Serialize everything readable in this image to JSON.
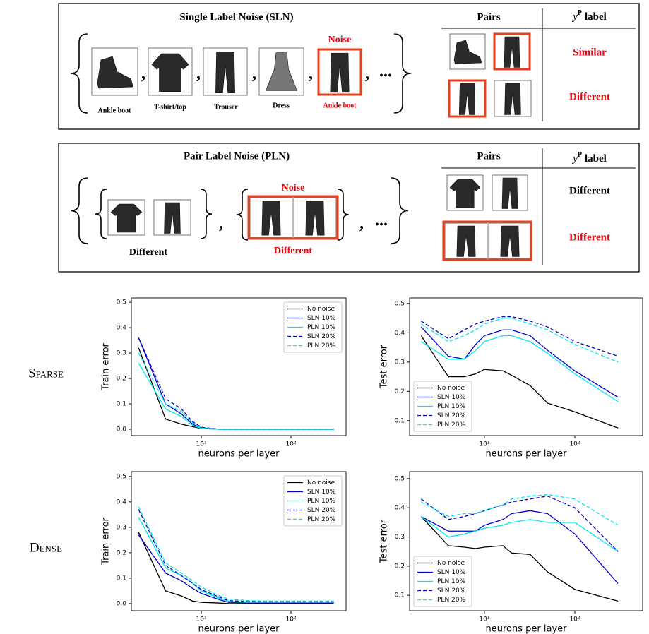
{
  "sln": {
    "title": "Single Label Noise (SLN)",
    "noise": "Noise",
    "items": [
      "Ankle boot",
      "T-shirt/top",
      "Trouser",
      "Dress",
      "Ankle boot"
    ],
    "separator": ",",
    "ellipsis": "...",
    "table": {
      "pairs": "Pairs",
      "header": {
        "symbol": "y",
        "superscript": "P",
        "text": "label"
      },
      "rows": [
        "Similar",
        "Different"
      ]
    }
  },
  "pln": {
    "title": "Pair Label Noise (PLN)",
    "noise": "Noise",
    "items": [
      "Different",
      "Different"
    ],
    "separator": ",",
    "ellipsis": "...",
    "table": {
      "pairs": "Pairs",
      "header": {
        "symbol": "y",
        "superscript": "P",
        "text": "label"
      },
      "rows": [
        "Different",
        "Different"
      ]
    }
  },
  "row_labels": [
    "Sparse",
    "Dense"
  ],
  "chart_data": [
    {
      "type": "line",
      "xlabel": "neurons per layer",
      "ylabel": "Train error",
      "xscale": "log",
      "legend": "upper right",
      "x": [
        2,
        4,
        6,
        8,
        10,
        16,
        20,
        32,
        50,
        100,
        300
      ],
      "xlim": [
        1.66,
        411
      ],
      "xticks": [
        {
          "value": 10,
          "label": "10¹"
        },
        {
          "value": 100,
          "label": "10²"
        }
      ],
      "ylim": [
        -0.025,
        0.517
      ],
      "yticks": [
        {
          "value": 0,
          "label": "0.0"
        },
        0.1,
        0.2,
        0.3,
        0.4,
        0.5
      ],
      "series": [
        {
          "name": "No noise",
          "color": "#000000",
          "style": "solid",
          "values": [
            0.32,
            0.04,
            0.02,
            0.01,
            0.003,
            0,
            0,
            0,
            0,
            0,
            0
          ]
        },
        {
          "name": "SLN 10%",
          "color": "#0000cc",
          "style": "solid",
          "values": [
            0.36,
            0.1,
            0.06,
            0.02,
            0.005,
            0,
            0,
            0,
            0,
            0,
            0
          ]
        },
        {
          "name": "PLN 10%",
          "color": "#00e5ee",
          "style": "solid",
          "values": [
            0.26,
            0.08,
            0.05,
            0.015,
            0.003,
            0,
            0,
            0,
            0,
            0,
            0
          ]
        },
        {
          "name": "SLN 20%",
          "color": "#0000cc",
          "style": "dashed",
          "values": [
            0.36,
            0.12,
            0.08,
            0.03,
            0.008,
            0,
            0,
            0,
            0,
            0,
            0
          ]
        },
        {
          "name": "PLN 20%",
          "color": "#00e5ee",
          "style": "dashed",
          "values": [
            0.3,
            0.1,
            0.07,
            0.025,
            0.005,
            0,
            0,
            0,
            0,
            0,
            0
          ]
        }
      ]
    },
    {
      "type": "line",
      "xlabel": "neurons per layer",
      "ylabel": "Test error",
      "xscale": "log",
      "legend": "lower left",
      "x": [
        2,
        4,
        6,
        8,
        10,
        16,
        20,
        32,
        50,
        100,
        300
      ],
      "xlim": [
        1.49,
        562
      ],
      "xticks": [
        {
          "value": 10,
          "label": "10¹"
        },
        {
          "value": 100,
          "label": "10²"
        }
      ],
      "ylim": [
        0.049,
        0.519
      ],
      "yticks": [
        0.1,
        0.2,
        0.3,
        0.4,
        0.5
      ],
      "series": [
        {
          "name": "No noise",
          "color": "#000000",
          "style": "solid",
          "values": [
            0.39,
            0.25,
            0.25,
            0.26,
            0.275,
            0.27,
            0.255,
            0.22,
            0.16,
            0.13,
            0.075
          ]
        },
        {
          "name": "SLN 10%",
          "color": "#0000cc",
          "style": "solid",
          "values": [
            0.42,
            0.32,
            0.31,
            0.36,
            0.39,
            0.41,
            0.41,
            0.39,
            0.34,
            0.27,
            0.18
          ]
        },
        {
          "name": "PLN 10%",
          "color": "#00e5ee",
          "style": "solid",
          "values": [
            0.37,
            0.31,
            0.31,
            0.34,
            0.37,
            0.39,
            0.39,
            0.37,
            0.33,
            0.26,
            0.165
          ]
        },
        {
          "name": "SLN 20%",
          "color": "#0000cc",
          "style": "dashed",
          "values": [
            0.44,
            0.38,
            0.41,
            0.43,
            0.44,
            0.455,
            0.455,
            0.44,
            0.42,
            0.37,
            0.32
          ]
        },
        {
          "name": "PLN 20%",
          "color": "#00e5ee",
          "style": "dashed",
          "values": [
            0.43,
            0.37,
            0.39,
            0.41,
            0.43,
            0.45,
            0.45,
            0.43,
            0.41,
            0.36,
            0.3
          ]
        }
      ]
    },
    {
      "type": "line",
      "xlabel": "neurons per layer",
      "ylabel": "Train error",
      "xscale": "log",
      "legend": "upper right",
      "x": [
        2,
        4,
        6,
        8,
        10,
        16,
        20,
        32,
        50,
        100,
        300
      ],
      "xlim": [
        1.66,
        411
      ],
      "xticks": [
        {
          "value": 10,
          "label": "10¹"
        },
        {
          "value": 100,
          "label": "10²"
        }
      ],
      "ylim": [
        -0.028,
        0.519
      ],
      "yticks": [
        {
          "value": 0,
          "label": "0.0"
        },
        0.1,
        0.2,
        0.3,
        0.4,
        0.5
      ],
      "series": [
        {
          "name": "No noise",
          "color": "#000000",
          "style": "solid",
          "values": [
            0.28,
            0.05,
            0.03,
            0.01,
            0.005,
            0.002,
            0,
            0,
            0,
            0,
            0
          ]
        },
        {
          "name": "SLN 10%",
          "color": "#0000cc",
          "style": "solid",
          "values": [
            0.27,
            0.12,
            0.09,
            0.06,
            0.04,
            0.015,
            0.005,
            0.003,
            0.003,
            0.003,
            0.003
          ]
        },
        {
          "name": "PLN 10%",
          "color": "#00e5ee",
          "style": "solid",
          "values": [
            0.34,
            0.14,
            0.11,
            0.08,
            0.05,
            0.02,
            0.01,
            0.005,
            0.005,
            0.005,
            0.005
          ]
        },
        {
          "name": "SLN 20%",
          "color": "#0000cc",
          "style": "dashed",
          "values": [
            0.37,
            0.15,
            0.11,
            0.08,
            0.055,
            0.025,
            0.012,
            0.008,
            0.008,
            0.008,
            0.008
          ]
        },
        {
          "name": "PLN 20%",
          "color": "#00e5ee",
          "style": "dashed",
          "values": [
            0.38,
            0.16,
            0.12,
            0.09,
            0.065,
            0.03,
            0.018,
            0.012,
            0.01,
            0.01,
            0.01
          ]
        }
      ]
    },
    {
      "type": "line",
      "xlabel": "neurons per layer",
      "ylabel": "Test error",
      "xscale": "log",
      "legend": "lower left",
      "x": [
        2,
        4,
        6,
        8,
        10,
        16,
        20,
        32,
        50,
        100,
        300
      ],
      "xlim": [
        1.49,
        562
      ],
      "xticks": [
        {
          "value": 10,
          "label": "10¹"
        },
        {
          "value": 100,
          "label": "10²"
        }
      ],
      "ylim": [
        0.047,
        0.524
      ],
      "yticks": [
        0.1,
        0.2,
        0.3,
        0.4,
        0.5
      ],
      "series": [
        {
          "name": "No noise",
          "color": "#000000",
          "style": "solid",
          "values": [
            0.37,
            0.27,
            0.265,
            0.26,
            0.265,
            0.27,
            0.245,
            0.24,
            0.18,
            0.12,
            0.08
          ]
        },
        {
          "name": "SLN 10%",
          "color": "#0000cc",
          "style": "solid",
          "values": [
            0.37,
            0.32,
            0.32,
            0.32,
            0.34,
            0.36,
            0.38,
            0.39,
            0.38,
            0.31,
            0.14
          ]
        },
        {
          "name": "PLN 10%",
          "color": "#00e5ee",
          "style": "solid",
          "values": [
            0.37,
            0.3,
            0.31,
            0.32,
            0.33,
            0.34,
            0.35,
            0.36,
            0.35,
            0.35,
            0.25
          ]
        },
        {
          "name": "SLN 20%",
          "color": "#0000cc",
          "style": "dashed",
          "values": [
            0.43,
            0.36,
            0.37,
            0.38,
            0.39,
            0.41,
            0.42,
            0.43,
            0.44,
            0.4,
            0.25
          ]
        },
        {
          "name": "PLN 20%",
          "color": "#00e5ee",
          "style": "dashed",
          "values": [
            0.42,
            0.37,
            0.38,
            0.38,
            0.39,
            0.41,
            0.43,
            0.44,
            0.445,
            0.43,
            0.34
          ]
        }
      ]
    }
  ]
}
